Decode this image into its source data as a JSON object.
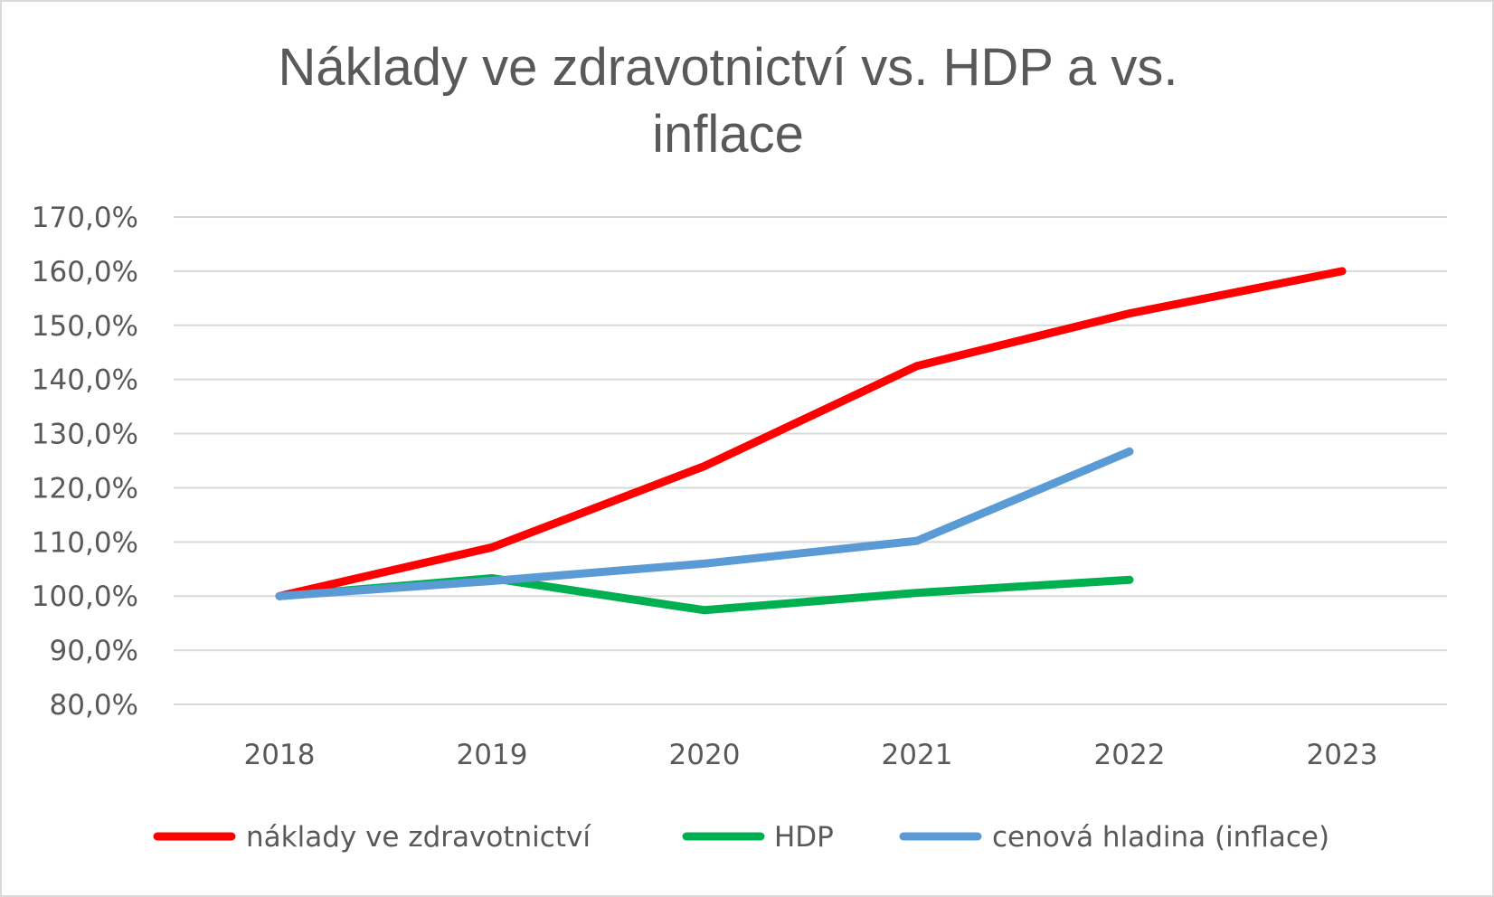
{
  "chart_data": {
    "type": "line",
    "title": "Náklady ve zdravotnictví vs. HDP a vs. inflace",
    "title_lines": [
      "Náklady ve zdravotnictví vs. HDP a vs.",
      "inflace"
    ],
    "xlabel": "",
    "ylabel": "",
    "categories": [
      "2018",
      "2019",
      "2020",
      "2021",
      "2022",
      "2023"
    ],
    "y_ticks": [
      "170,0%",
      "160,0%",
      "150,0%",
      "140,0%",
      "130,0%",
      "120,0%",
      "110,0%",
      "100,0%",
      "90,0%",
      "80,0%"
    ],
    "ylim": [
      80,
      170
    ],
    "grid": true,
    "legend_position": "bottom",
    "series": [
      {
        "name": "náklady ve zdravotnictví",
        "color": "#ff0000",
        "values": [
          100.0,
          109.0,
          124.0,
          142.5,
          152.2,
          160.0
        ]
      },
      {
        "name": "HDP",
        "color": "#00b050",
        "values": [
          100.0,
          103.3,
          97.4,
          100.6,
          103.0,
          null
        ]
      },
      {
        "name": "cenová hladina (inflace)",
        "color": "#5b9bd5",
        "values": [
          100.0,
          102.8,
          106.0,
          110.2,
          126.7,
          null
        ]
      }
    ]
  }
}
